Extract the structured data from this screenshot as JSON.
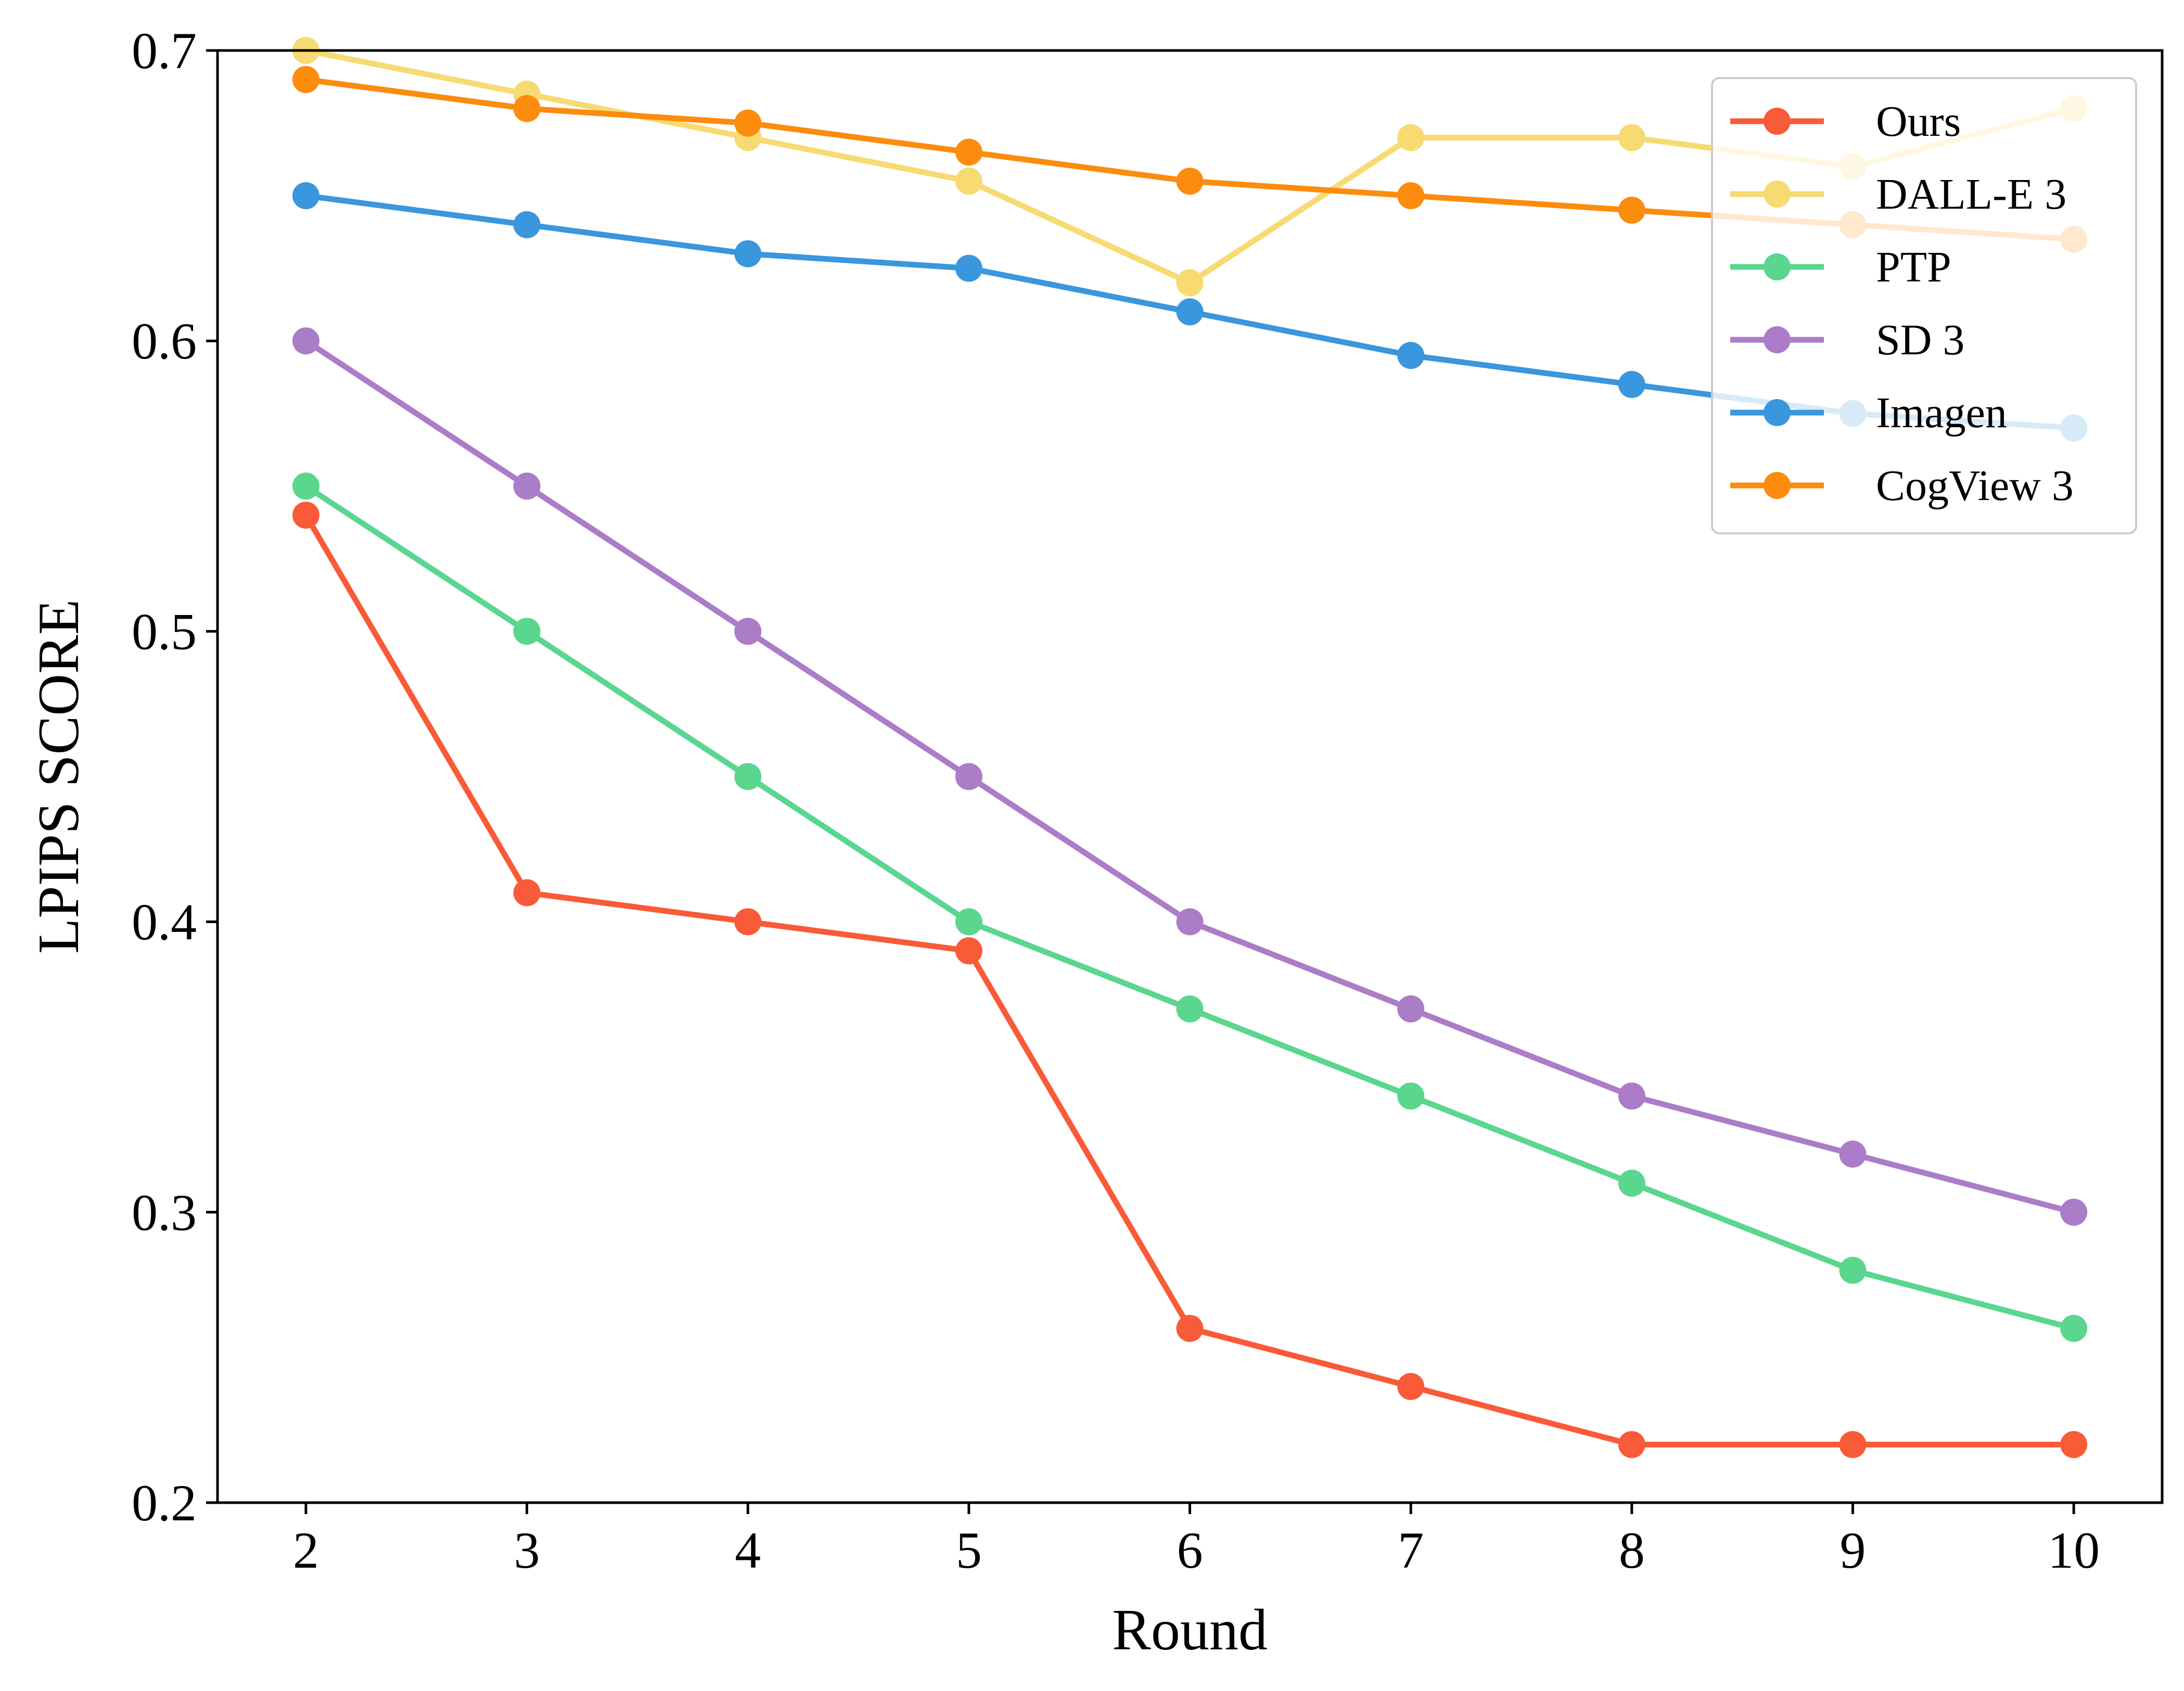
{
  "chart_data": {
    "type": "line",
    "title": "",
    "xlabel": "Round",
    "ylabel": "LPIPS SCORE",
    "x": [
      2,
      3,
      4,
      5,
      6,
      7,
      8,
      9,
      10
    ],
    "xlim": [
      1.6,
      10.4
    ],
    "ylim": [
      0.2,
      0.7
    ],
    "xticks": [
      "2",
      "3",
      "4",
      "5",
      "6",
      "7",
      "8",
      "9",
      "10"
    ],
    "yticks": [
      "0.2",
      "0.3",
      "0.4",
      "0.5",
      "0.6",
      "0.7"
    ],
    "grid": false,
    "legend_position": "top-right",
    "series": [
      {
        "name": "Ours",
        "color": "#f95a37",
        "values": [
          0.54,
          0.41,
          0.4,
          0.39,
          0.26,
          0.24,
          0.22,
          0.22,
          0.22
        ]
      },
      {
        "name": "DALL-E 3",
        "color": "#f7da72",
        "values": [
          0.7,
          0.685,
          0.67,
          0.655,
          0.62,
          0.67,
          0.67,
          0.66,
          0.68
        ]
      },
      {
        "name": "PTP",
        "color": "#5ad68f",
        "values": [
          0.55,
          0.5,
          0.45,
          0.4,
          0.37,
          0.34,
          0.31,
          0.28,
          0.26
        ]
      },
      {
        "name": "SD 3",
        "color": "#ab7cc8",
        "values": [
          0.6,
          0.55,
          0.5,
          0.45,
          0.4,
          0.37,
          0.34,
          0.32,
          0.3
        ]
      },
      {
        "name": "Imagen",
        "color": "#3a96dd",
        "values": [
          0.65,
          0.64,
          0.63,
          0.625,
          0.61,
          0.595,
          0.585,
          0.575,
          0.57
        ]
      },
      {
        "name": "CogView 3",
        "color": "#fc8c0e",
        "values": [
          0.69,
          0.68,
          0.675,
          0.665,
          0.655,
          0.65,
          0.645,
          0.64,
          0.635
        ]
      }
    ]
  }
}
